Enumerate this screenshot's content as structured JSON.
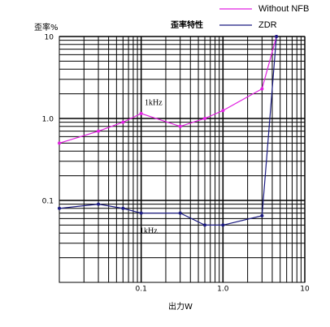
{
  "chart_data": {
    "type": "line",
    "title": "歪率特性",
    "xlabel": "出力W",
    "ylabel": "歪率%",
    "xscale": "log",
    "yscale": "log",
    "grid": true,
    "legend": "upper right",
    "xlim": [
      0.01,
      10
    ],
    "ylim": [
      0.01,
      10
    ],
    "xticks": [
      0.1,
      {
        "value": 1,
        "label": "1.0"
      },
      10
    ],
    "yticks": [
      0.1,
      {
        "value": 1,
        "label": "1.0"
      },
      10
    ],
    "series": [
      {
        "name": "Without NFB",
        "color": "#e020e0",
        "x": [
          0.01,
          0.03,
          0.06,
          0.1,
          0.3,
          0.6,
          1,
          3,
          4.5
        ],
        "values": [
          0.5,
          0.7,
          0.9,
          1.15,
          0.8,
          1.0,
          1.25,
          2.3,
          10
        ]
      },
      {
        "name": "ZDR",
        "color": "#1a1a80",
        "x": [
          0.01,
          0.03,
          0.06,
          0.1,
          0.3,
          0.6,
          1,
          3,
          4.5
        ],
        "values": [
          0.08,
          0.09,
          0.08,
          0.07,
          0.07,
          0.05,
          0.05,
          0.065,
          10
        ]
      }
    ],
    "annotations": [
      {
        "text": "1kHz",
        "color": "#e020e0"
      },
      {
        "text": "1kHz",
        "color": "#1a1a80"
      }
    ]
  }
}
